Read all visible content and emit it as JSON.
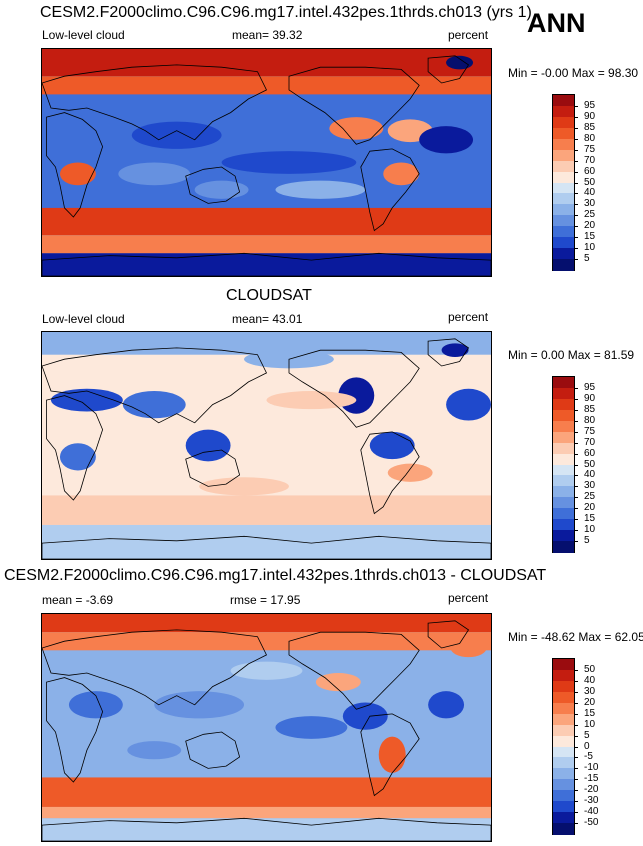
{
  "season": "ANN",
  "panels": [
    {
      "id": "model",
      "title": "CESM2.F2000climo.C96.C96.mg17.intel.432pes.1thrds.ch013 (yrs 1)",
      "left_label": "Low-level cloud",
      "center_label": "mean=  39.32",
      "units": "percent",
      "min_max": "Min = -0.00 Max = 98.30"
    },
    {
      "id": "obs",
      "title": "CLOUDSAT",
      "left_label": "Low-level cloud",
      "center_label": "mean=  43.01",
      "units": "percent",
      "min_max": "Min =  0.00 Max = 81.59"
    },
    {
      "id": "diff",
      "title": "CESM2.F2000climo.C96.C96.mg17.intel.432pes.1thrds.ch013 - CLOUDSAT",
      "left_label": "mean =  -3.69",
      "center_label": "rmse =  17.95",
      "units": "percent",
      "min_max": "Min = -48.62 Max = 62.05"
    }
  ],
  "chart_data": [
    {
      "type": "heatmap",
      "title": "CESM2.F2000climo.C96.C96.mg17.intel.432pes.1thrds.ch013 (yrs 1)",
      "variable": "Low-level cloud",
      "units": "percent",
      "mean": 39.32,
      "min": -0.0,
      "max": 98.3,
      "colorbar_levels": [
        "95",
        "90",
        "85",
        "80",
        "75",
        "70",
        "60",
        "50",
        "40",
        "30",
        "25",
        "20",
        "15",
        "10",
        "5"
      ],
      "colorbar_colors": [
        "#9a0c0f",
        "#c41d10",
        "#df3a16",
        "#ee5a28",
        "#f77e4d",
        "#fba57c",
        "#fcccb3",
        "#fde9dc",
        "#d5e5f4",
        "#b0cdef",
        "#8bb1e8",
        "#6691e0",
        "#3f6fd8",
        "#1f49cc",
        "#0a1a9c",
        "#050f6e"
      ]
    },
    {
      "type": "heatmap",
      "title": "CLOUDSAT",
      "variable": "Low-level cloud",
      "units": "percent",
      "mean": 43.01,
      "min": 0.0,
      "max": 81.59,
      "colorbar_levels": [
        "95",
        "90",
        "85",
        "80",
        "75",
        "70",
        "60",
        "50",
        "40",
        "30",
        "25",
        "20",
        "15",
        "10",
        "5"
      ],
      "colorbar_colors": [
        "#9a0c0f",
        "#c41d10",
        "#df3a16",
        "#ee5a28",
        "#f77e4d",
        "#fba57c",
        "#fcccb3",
        "#fde9dc",
        "#d5e5f4",
        "#b0cdef",
        "#8bb1e8",
        "#6691e0",
        "#3f6fd8",
        "#1f49cc",
        "#0a1a9c",
        "#050f6e"
      ]
    },
    {
      "type": "heatmap",
      "title": "CESM2.F2000climo.C96.C96.mg17.intel.432pes.1thrds.ch013 - CLOUDSAT",
      "units": "percent",
      "mean": -3.69,
      "rmse": 17.95,
      "min": -48.62,
      "max": 62.05,
      "colorbar_levels": [
        "50",
        "40",
        "30",
        "20",
        "15",
        "10",
        "5",
        "0",
        "-5",
        "-10",
        "-15",
        "-20",
        "-30",
        "-40",
        "-50"
      ],
      "colorbar_colors": [
        "#9a0c0f",
        "#c41d10",
        "#df3a16",
        "#ee5a28",
        "#f77e4d",
        "#fba57c",
        "#fcccb3",
        "#fde9dc",
        "#d5e5f4",
        "#b0cdef",
        "#8bb1e8",
        "#6691e0",
        "#3f6fd8",
        "#1f49cc",
        "#0a1a9c",
        "#050f6e"
      ]
    }
  ]
}
